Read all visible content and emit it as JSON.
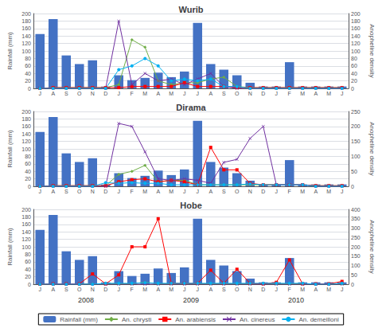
{
  "chart_data": [
    {
      "type": "bar",
      "title": "Wurib",
      "categories": [
        "J",
        "A",
        "S",
        "O",
        "N",
        "D",
        "J",
        "F",
        "M",
        "A",
        "M",
        "J",
        "J",
        "A",
        "S",
        "O",
        "N",
        "D",
        "J",
        "F",
        "M",
        "A",
        "M",
        "J"
      ],
      "ylabel": "Rainfall (mm)",
      "y2label": "Anopheline density",
      "ylim": [
        0,
        200
      ],
      "yticks": [
        0,
        20,
        40,
        60,
        80,
        100,
        120,
        140,
        160,
        180,
        200
      ],
      "y2lim": [
        0,
        200
      ],
      "y2ticks": [
        0,
        20,
        40,
        60,
        80,
        100,
        120,
        140,
        160,
        180,
        200
      ],
      "grid": true,
      "legend": "bottom",
      "series": [
        {
          "name": "Rainfall (mm)",
          "type": "bar",
          "color": "#4472C4",
          "values": [
            145,
            185,
            88,
            65,
            75,
            5,
            35,
            22,
            28,
            42,
            30,
            45,
            175,
            65,
            50,
            35,
            15,
            5,
            5,
            70,
            5,
            5,
            5,
            5
          ]
        },
        {
          "name": "An. chrysti",
          "type": "line",
          "axis": "y2",
          "marker": "diamond",
          "color": "#70AD47",
          "values": [
            0,
            2,
            2,
            2,
            2,
            2,
            10,
            130,
            110,
            20,
            10,
            15,
            15,
            25,
            30,
            5,
            2,
            2,
            2,
            2,
            2,
            2,
            2,
            2
          ]
        },
        {
          "name": "An. arabiensis",
          "type": "line",
          "axis": "y2",
          "marker": "square",
          "color": "#FF0000",
          "values": [
            0,
            2,
            2,
            2,
            2,
            2,
            2,
            5,
            5,
            5,
            5,
            15,
            5,
            5,
            5,
            2,
            2,
            2,
            2,
            2,
            2,
            2,
            2,
            2
          ]
        },
        {
          "name": "An. cinereus",
          "type": "line",
          "axis": "y2",
          "marker": "x",
          "color": "#7030A0",
          "values": [
            0,
            0,
            0,
            0,
            0,
            0,
            180,
            10,
            40,
            20,
            25,
            10,
            25,
            40,
            5,
            0,
            0,
            0,
            0,
            0,
            0,
            0,
            0,
            0
          ]
        },
        {
          "name": "An. demeilloni",
          "type": "line",
          "axis": "y2",
          "marker": "circle",
          "color": "#00B0F0",
          "values": [
            0,
            0,
            0,
            0,
            0,
            0,
            50,
            60,
            80,
            60,
            20,
            25,
            20,
            25,
            5,
            5,
            0,
            0,
            0,
            0,
            0,
            0,
            0,
            0
          ]
        }
      ]
    },
    {
      "type": "bar",
      "title": "Dirama",
      "categories": [
        "J",
        "A",
        "S",
        "O",
        "N",
        "D",
        "J",
        "F",
        "M",
        "A",
        "M",
        "J",
        "J",
        "A",
        "S",
        "O",
        "N",
        "D",
        "J",
        "F",
        "M",
        "A",
        "M",
        "J"
      ],
      "ylabel": "Rainfall (mm)",
      "y2label": "Anopheline density",
      "ylim": [
        0,
        200
      ],
      "yticks": [
        0,
        20,
        40,
        60,
        80,
        100,
        120,
        140,
        160,
        180,
        200
      ],
      "y2lim": [
        0,
        250
      ],
      "y2ticks": [
        0,
        50,
        100,
        150,
        200,
        250
      ],
      "grid": true,
      "legend": "bottom",
      "series": [
        {
          "name": "Rainfall (mm)",
          "type": "bar",
          "color": "#4472C4",
          "values": [
            145,
            185,
            88,
            65,
            75,
            5,
            35,
            22,
            28,
            42,
            30,
            45,
            175,
            65,
            50,
            35,
            15,
            5,
            5,
            70,
            5,
            5,
            5,
            5
          ]
        },
        {
          "name": "An. chrysti",
          "type": "line",
          "axis": "y2",
          "marker": "diamond",
          "color": "#70AD47",
          "values": [
            0,
            2,
            2,
            2,
            2,
            2,
            40,
            50,
            70,
            15,
            20,
            20,
            5,
            5,
            5,
            5,
            5,
            5,
            5,
            5,
            5,
            2,
            2,
            2
          ]
        },
        {
          "name": "An. arabiensis",
          "type": "line",
          "axis": "y2",
          "marker": "square",
          "color": "#FF0000",
          "values": [
            0,
            2,
            2,
            2,
            2,
            2,
            15,
            22,
            25,
            15,
            20,
            15,
            5,
            130,
            55,
            55,
            10,
            5,
            5,
            5,
            5,
            2,
            2,
            2
          ]
        },
        {
          "name": "An. cinereus",
          "type": "line",
          "axis": "y2",
          "marker": "x",
          "color": "#7030A0",
          "values": [
            0,
            0,
            0,
            0,
            0,
            0,
            210,
            200,
            115,
            25,
            20,
            25,
            20,
            10,
            80,
            90,
            160,
            200,
            5,
            5,
            5,
            0,
            0,
            0
          ]
        },
        {
          "name": "An. demeilloni",
          "type": "line",
          "axis": "y2",
          "marker": "circle",
          "color": "#00B0F0",
          "values": [
            0,
            0,
            0,
            0,
            0,
            12,
            10,
            12,
            10,
            10,
            5,
            5,
            5,
            5,
            5,
            5,
            8,
            5,
            5,
            5,
            5,
            0,
            0,
            0
          ]
        }
      ]
    },
    {
      "type": "bar",
      "title": "Hobe",
      "categories": [
        "J",
        "A",
        "S",
        "O",
        "N",
        "D",
        "J",
        "F",
        "M",
        "A",
        "M",
        "J",
        "J",
        "A",
        "S",
        "O",
        "N",
        "D",
        "J",
        "F",
        "M",
        "A",
        "M",
        "J"
      ],
      "ylabel": "Rainfall (mm)",
      "y2label": "Anopheline density",
      "ylim": [
        0,
        200
      ],
      "yticks": [
        0,
        20,
        40,
        60,
        80,
        100,
        120,
        140,
        160,
        180,
        200
      ],
      "y2lim": [
        0,
        400
      ],
      "y2ticks": [
        0,
        50,
        100,
        150,
        200,
        250,
        300,
        350,
        400
      ],
      "grid": true,
      "legend": "bottom",
      "annotations": [
        {
          "text": "2008",
          "x": 3.5
        },
        {
          "text": "2009",
          "x": 11.5
        },
        {
          "text": "2010",
          "x": 19.5
        }
      ],
      "series": [
        {
          "name": "Rainfall (mm)",
          "type": "bar",
          "color": "#4472C4",
          "values": [
            145,
            185,
            88,
            65,
            75,
            5,
            35,
            22,
            28,
            42,
            30,
            45,
            175,
            65,
            50,
            35,
            15,
            5,
            5,
            70,
            5,
            5,
            5,
            5
          ]
        },
        {
          "name": "An. chrysti",
          "type": "line",
          "axis": "y2",
          "marker": "diamond",
          "color": "#70AD47",
          "values": [
            0,
            2,
            2,
            2,
            2,
            2,
            2,
            2,
            10,
            2,
            2,
            2,
            2,
            2,
            2,
            2,
            2,
            2,
            2,
            2,
            2,
            2,
            2,
            2
          ]
        },
        {
          "name": "An. arabiensis",
          "type": "line",
          "axis": "y2",
          "marker": "square",
          "color": "#FF0000",
          "values": [
            0,
            2,
            2,
            2,
            55,
            2,
            50,
            200,
            200,
            350,
            5,
            5,
            5,
            75,
            5,
            80,
            5,
            2,
            10,
            130,
            2,
            2,
            2,
            15
          ]
        },
        {
          "name": "An. cinereus",
          "type": "line",
          "axis": "y2",
          "marker": "x",
          "color": "#7030A0",
          "values": [
            0,
            0,
            0,
            0,
            0,
            0,
            0,
            0,
            0,
            0,
            0,
            0,
            0,
            0,
            0,
            0,
            0,
            0,
            0,
            0,
            0,
            0,
            0,
            0
          ]
        },
        {
          "name": "An. demeilloni",
          "type": "line",
          "axis": "y2",
          "marker": "circle",
          "color": "#00B0F0",
          "values": [
            0,
            0,
            0,
            0,
            0,
            5,
            5,
            5,
            8,
            5,
            5,
            5,
            5,
            5,
            5,
            5,
            5,
            5,
            5,
            5,
            5,
            0,
            0,
            5
          ]
        }
      ]
    }
  ]
}
